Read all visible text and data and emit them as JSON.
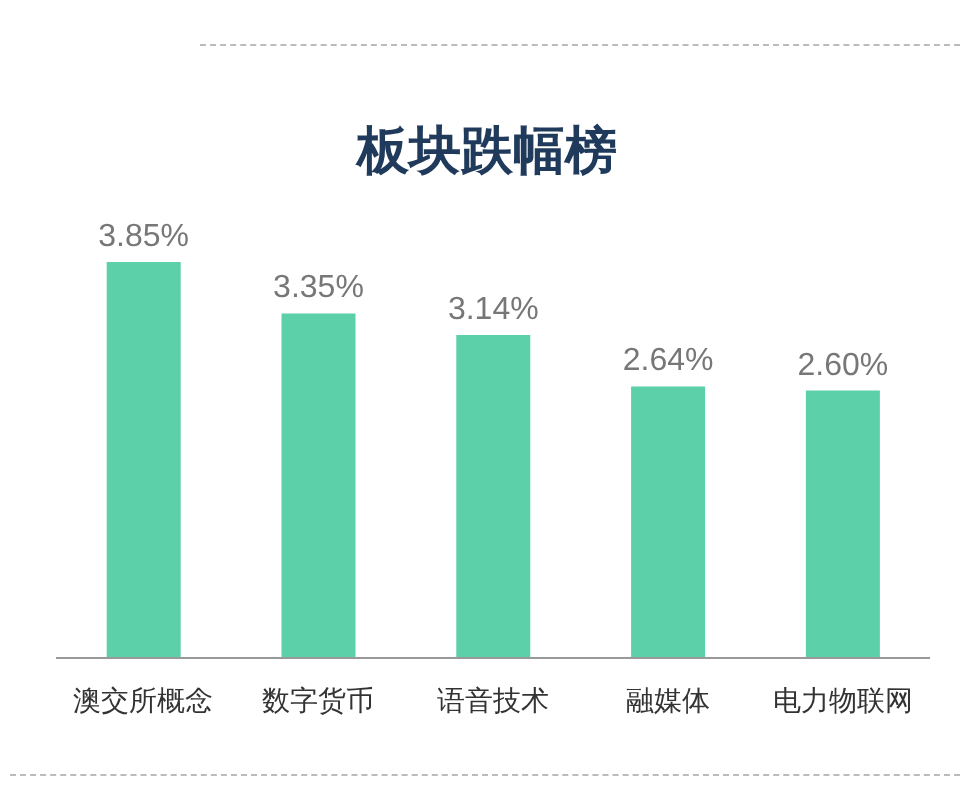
{
  "chart_data": {
    "type": "bar",
    "title": "板块跌幅榜",
    "categories": [
      "澳交所概念",
      "数字货币",
      "语音技术",
      "融媒体",
      "电力物联网"
    ],
    "values": [
      3.85,
      3.35,
      3.14,
      2.64,
      2.6
    ],
    "value_labels": [
      "3.85%",
      "3.35%",
      "3.14%",
      "2.64%",
      "2.60%"
    ],
    "color": "#5cd0a8",
    "grid": false,
    "legend": false
  }
}
